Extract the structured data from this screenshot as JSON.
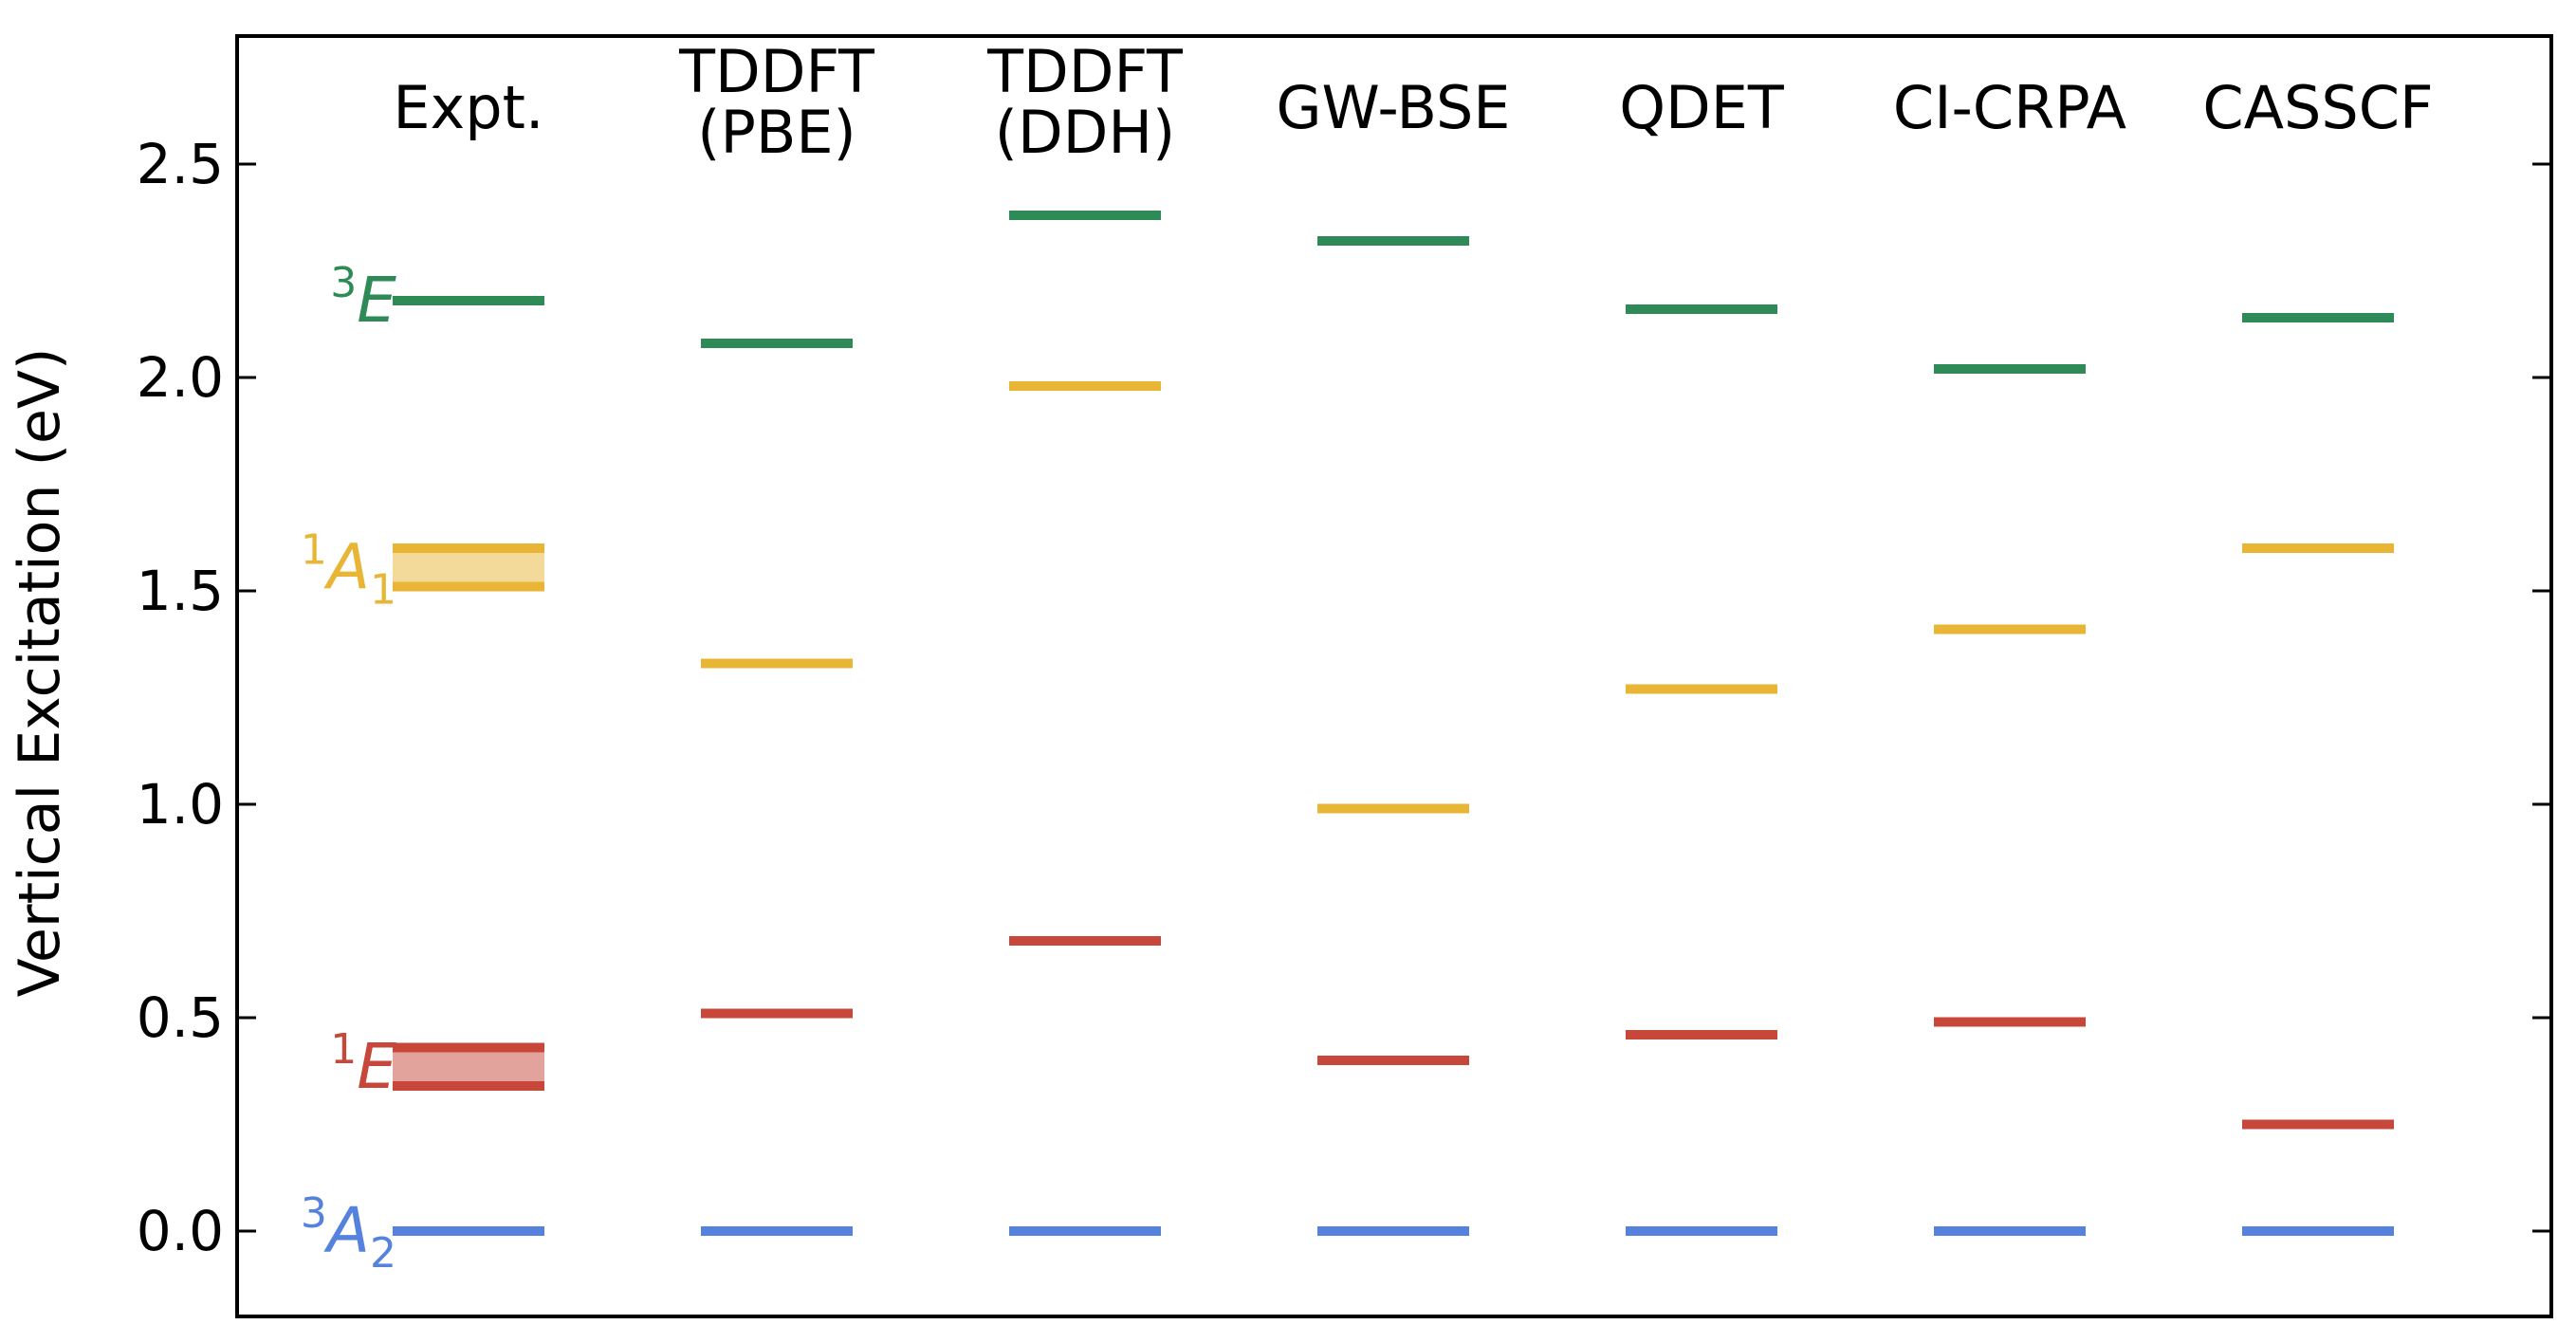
{
  "chart_data": {
    "type": "energy-level",
    "title": "",
    "xlabel": "",
    "ylabel": "Vertical Excitation (eV)",
    "ylim": [
      -0.2,
      2.8
    ],
    "yticks": [
      "0.0",
      "0.5",
      "1.0",
      "1.5",
      "2.0",
      "2.5"
    ],
    "grid": false,
    "categories": [
      {
        "lines": [
          "Expt."
        ]
      },
      {
        "lines": [
          "TDDFT",
          "(PBE)"
        ]
      },
      {
        "lines": [
          "TDDFT",
          "(DDH)"
        ]
      },
      {
        "lines": [
          "GW-BSE"
        ]
      },
      {
        "lines": [
          "QDET"
        ]
      },
      {
        "lines": [
          "CI-CRPA"
        ]
      },
      {
        "lines": [
          "CASSCF"
        ]
      }
    ],
    "series": [
      {
        "state": "3A2",
        "label_sup": "3",
        "label_main": "A",
        "label_sub": "2",
        "color": "#5582dd",
        "values": [
          0.0,
          0.0,
          0.0,
          0.0,
          0.0,
          0.0,
          0.0
        ]
      },
      {
        "state": "1E",
        "label_sup": "1",
        "label_main": "E",
        "label_sub": "",
        "color": "#c8473b",
        "values": [
          null,
          0.51,
          0.68,
          0.4,
          0.46,
          0.49,
          0.25
        ],
        "expt_range": [
          0.34,
          0.43
        ]
      },
      {
        "state": "1A1",
        "label_sup": "1",
        "label_main": "A",
        "label_sub": "1",
        "color": "#e8b535",
        "values": [
          null,
          1.33,
          1.98,
          0.99,
          1.27,
          1.41,
          1.6
        ],
        "expt_range": [
          1.51,
          1.6
        ]
      },
      {
        "state": "3E",
        "label_sup": "3",
        "label_main": "E",
        "label_sub": "",
        "color": "#2e8b57",
        "values": [
          2.18,
          2.08,
          2.38,
          2.32,
          2.16,
          2.02,
          2.14
        ]
      }
    ]
  }
}
